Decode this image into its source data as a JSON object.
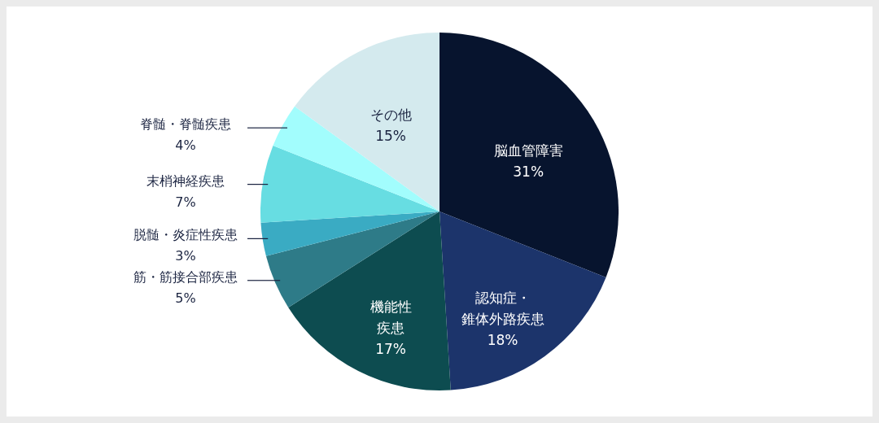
{
  "chart_data": {
    "type": "pie",
    "categories": [
      "脳血管障害",
      "認知症・錐体外路疾患",
      "機能性疾患",
      "筋・筋接合部疾患",
      "脱髄・炎症性疾患",
      "末梢神経疾患",
      "脊髄・脊髄疾患",
      "その他"
    ],
    "values": [
      31,
      18,
      17,
      5,
      3,
      7,
      4,
      15
    ],
    "value_labels": [
      "31%",
      "18%",
      "17%",
      "5%",
      "3%",
      "7%",
      "4%",
      "15%"
    ],
    "colors": [
      "#07142e",
      "#1c346b",
      "#0d4c50",
      "#2e7b88",
      "#3aabc3",
      "#67dde2",
      "#a2fdfd",
      "#d4eaee"
    ]
  }
}
